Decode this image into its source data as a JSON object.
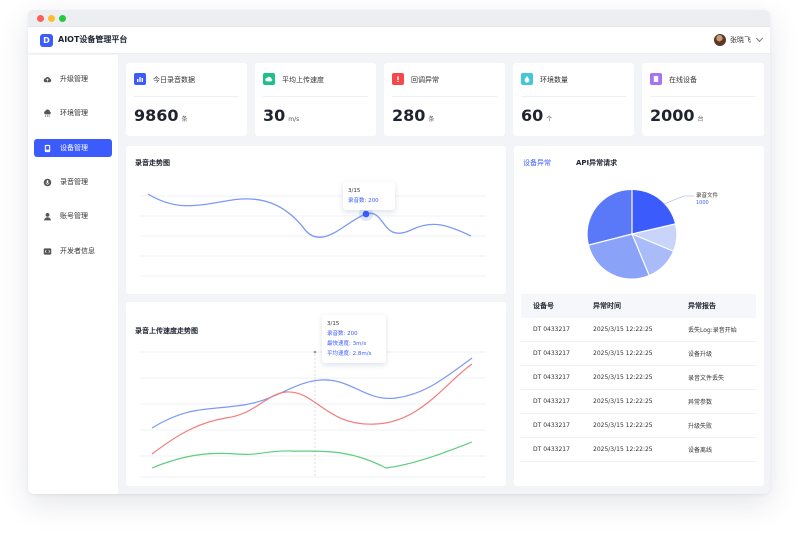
{
  "app": {
    "logo_letter": "D",
    "title": "AIOT设备管理平台"
  },
  "user": {
    "name": "张晓飞"
  },
  "sidebar": {
    "items": [
      {
        "label": "升级管理",
        "icon": "cloud-upload-icon",
        "active": false
      },
      {
        "label": "环境管理",
        "icon": "cloud-rain-icon",
        "active": false
      },
      {
        "label": "设备管理",
        "icon": "device-icon",
        "active": true
      },
      {
        "label": "录音管理",
        "icon": "microphone-icon",
        "active": false
      },
      {
        "label": "账号管理",
        "icon": "user-icon",
        "active": false
      },
      {
        "label": "开发者信息",
        "icon": "code-icon",
        "active": false
      }
    ]
  },
  "stats": [
    {
      "label": "今日录音数据",
      "value": "9860",
      "unit": "条",
      "icon": "bar-chart-icon",
      "color": "#3b5bfd"
    },
    {
      "label": "平均上传速度",
      "value": "30",
      "unit": "m/s",
      "icon": "cloud-icon",
      "color": "#1ec08a"
    },
    {
      "label": "回调异常",
      "value": "280",
      "unit": "条",
      "icon": "alert-icon",
      "color": "#f5484a"
    },
    {
      "label": "环境数量",
      "value": "60",
      "unit": "个",
      "icon": "droplet-icon",
      "color": "#45c6d9"
    },
    {
      "label": "在线设备",
      "value": "2000",
      "unit": "台",
      "icon": "device-icon",
      "color": "#a872f0"
    }
  ],
  "recording_trend": {
    "title": "录音走势图",
    "tooltip": {
      "date": "3/15",
      "label": "录音数:",
      "value": "200"
    }
  },
  "upload_trend": {
    "title": "录音上传速度走势图",
    "tooltip": {
      "date": "3/15",
      "rows": [
        {
          "label": "录音数:",
          "value": "200"
        },
        {
          "label": "最快速度:",
          "value": "3m/s"
        },
        {
          "label": "平均速度:",
          "value": "2.8m/s"
        }
      ]
    }
  },
  "colors": {
    "primary": "#3b5bfd",
    "line_blue": "#7b9af5",
    "line_red": "#f47c7c",
    "line_green": "#5ccf7e"
  },
  "anomaly": {
    "tabs": [
      {
        "label": "设备异常",
        "active": true
      },
      {
        "label": "API异常请求",
        "active": false
      }
    ],
    "pie_label": {
      "name": "录音文件",
      "value": "1000"
    },
    "table": {
      "headers": [
        "设备号",
        "异常时间",
        "异常报告"
      ],
      "rows": [
        [
          "DT 0433217",
          "2025/3/15  12:22:25",
          "丢失Log:录音开始"
        ],
        [
          "DT 0433217",
          "2025/3/15  12:22:25",
          "设备升级"
        ],
        [
          "DT 0433217",
          "2025/3/15  12:22:25",
          "录音文件丢失"
        ],
        [
          "DT 0433217",
          "2025/3/15  12:22:25",
          "异常参数"
        ],
        [
          "DT 0433217",
          "2025/3/15  12:22:25",
          "升级失败"
        ],
        [
          "DT 0433217",
          "2025/3/15  12:22:25",
          "设备离线"
        ]
      ]
    }
  }
}
